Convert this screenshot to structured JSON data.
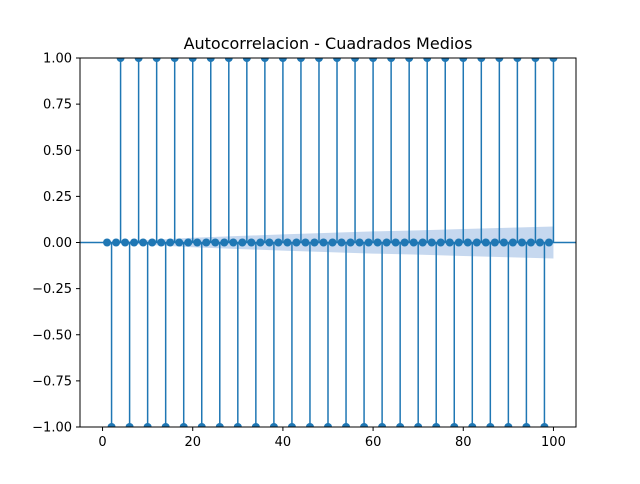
{
  "chart_data": {
    "type": "stem",
    "title": "Autocorrelacion - Cuadrados Medios",
    "xlabel": "",
    "ylabel": "",
    "xlim": [
      -5,
      105
    ],
    "ylim": [
      -1.0,
      1.0
    ],
    "xticks": [
      0,
      20,
      40,
      60,
      80,
      100
    ],
    "xtick_labels": [
      "0",
      "20",
      "40",
      "60",
      "80",
      "100"
    ],
    "yticks": [
      -1.0,
      -0.75,
      -0.5,
      -0.25,
      0.0,
      0.25,
      0.5,
      0.75,
      1.0
    ],
    "ytick_labels": [
      "−1.00",
      "−0.75",
      "−0.50",
      "−0.25",
      "0.00",
      "0.25",
      "0.50",
      "0.75",
      "1.00"
    ],
    "grid": false,
    "color": "#1f77b4",
    "band_color": "#aec7e8",
    "pattern": {
      "lags": [
        1,
        100
      ],
      "lag_mod_4": {
        "0": 1.0,
        "1": 0.0,
        "2": -1.0,
        "3": 0.0
      }
    },
    "confidence_band": {
      "x": [
        1,
        10,
        20,
        30,
        40,
        50,
        60,
        70,
        80,
        90,
        100
      ],
      "upper": [
        0.0,
        0.013,
        0.026,
        0.035,
        0.044,
        0.052,
        0.06,
        0.066,
        0.073,
        0.08,
        0.087
      ],
      "lower": [
        0.0,
        -0.013,
        -0.026,
        -0.035,
        -0.044,
        -0.052,
        -0.06,
        -0.066,
        -0.073,
        -0.08,
        -0.087
      ]
    }
  }
}
